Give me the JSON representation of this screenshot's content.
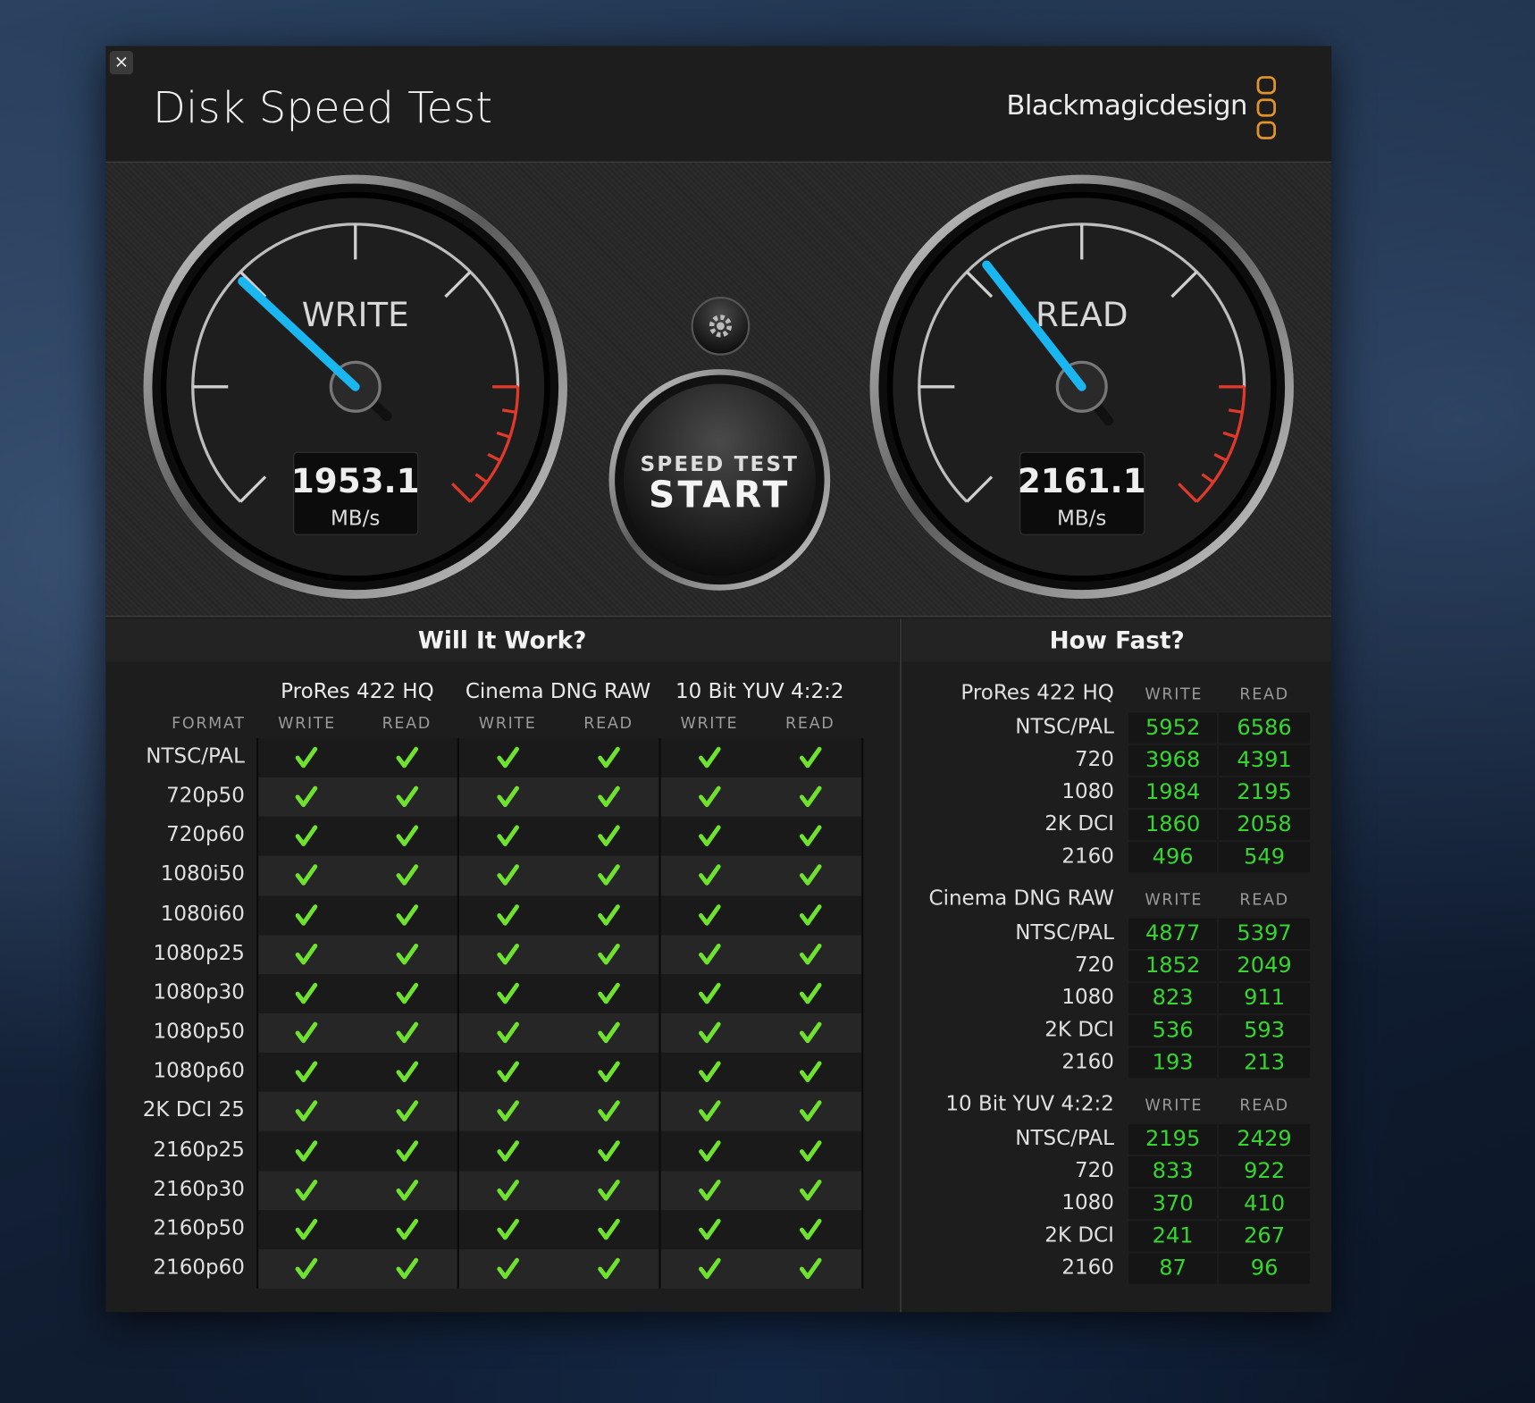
{
  "window": {
    "title": "Disk Speed Test",
    "brand": "Blackmagicdesign"
  },
  "gauges": [
    {
      "label": "WRITE",
      "value": 1953.1,
      "unit": "MB/s"
    },
    {
      "label": "READ",
      "value": 2161.1,
      "unit": "MB/s"
    }
  ],
  "start_button": {
    "line1": "SPEED TEST",
    "line2": "START"
  },
  "will_it_work": {
    "title": "Will It Work?",
    "format_label": "FORMAT",
    "codecs": [
      "ProRes 422 HQ",
      "Cinema DNG RAW",
      "10 Bit YUV 4:2:2"
    ],
    "columns": [
      "WRITE",
      "READ"
    ],
    "formats": [
      "NTSC/PAL",
      "720p50",
      "720p60",
      "1080i50",
      "1080i60",
      "1080p25",
      "1080p30",
      "1080p50",
      "1080p60",
      "2K DCI 25",
      "2160p25",
      "2160p30",
      "2160p50",
      "2160p60"
    ],
    "results": [
      [
        true,
        true,
        true,
        true,
        true,
        true
      ],
      [
        true,
        true,
        true,
        true,
        true,
        true
      ],
      [
        true,
        true,
        true,
        true,
        true,
        true
      ],
      [
        true,
        true,
        true,
        true,
        true,
        true
      ],
      [
        true,
        true,
        true,
        true,
        true,
        true
      ],
      [
        true,
        true,
        true,
        true,
        true,
        true
      ],
      [
        true,
        true,
        true,
        true,
        true,
        true
      ],
      [
        true,
        true,
        true,
        true,
        true,
        true
      ],
      [
        true,
        true,
        true,
        true,
        true,
        true
      ],
      [
        true,
        true,
        true,
        true,
        true,
        true
      ],
      [
        true,
        true,
        true,
        true,
        true,
        true
      ],
      [
        true,
        true,
        true,
        true,
        true,
        true
      ],
      [
        true,
        true,
        true,
        true,
        true,
        true
      ],
      [
        true,
        true,
        true,
        true,
        true,
        true
      ]
    ]
  },
  "how_fast": {
    "title": "How Fast?",
    "columns": [
      "WRITE",
      "READ"
    ],
    "groups": [
      {
        "codec": "ProRes 422 HQ",
        "rows": [
          {
            "format": "NTSC/PAL",
            "write": 5952,
            "read": 6586
          },
          {
            "format": "720",
            "write": 3968,
            "read": 4391
          },
          {
            "format": "1080",
            "write": 1984,
            "read": 2195
          },
          {
            "format": "2K DCI",
            "write": 1860,
            "read": 2058
          },
          {
            "format": "2160",
            "write": 496,
            "read": 549
          }
        ]
      },
      {
        "codec": "Cinema DNG RAW",
        "rows": [
          {
            "format": "NTSC/PAL",
            "write": 4877,
            "read": 5397
          },
          {
            "format": "720",
            "write": 1852,
            "read": 2049
          },
          {
            "format": "1080",
            "write": 823,
            "read": 911
          },
          {
            "format": "2K DCI",
            "write": 536,
            "read": 593
          },
          {
            "format": "2160",
            "write": 193,
            "read": 213
          }
        ]
      },
      {
        "codec": "10 Bit YUV 4:2:2",
        "rows": [
          {
            "format": "NTSC/PAL",
            "write": 2195,
            "read": 2429
          },
          {
            "format": "720",
            "write": 833,
            "read": 922
          },
          {
            "format": "1080",
            "write": 370,
            "read": 410
          },
          {
            "format": "2K DCI",
            "write": 241,
            "read": 267
          },
          {
            "format": "2160",
            "write": 87,
            "read": 96
          }
        ]
      }
    ]
  }
}
